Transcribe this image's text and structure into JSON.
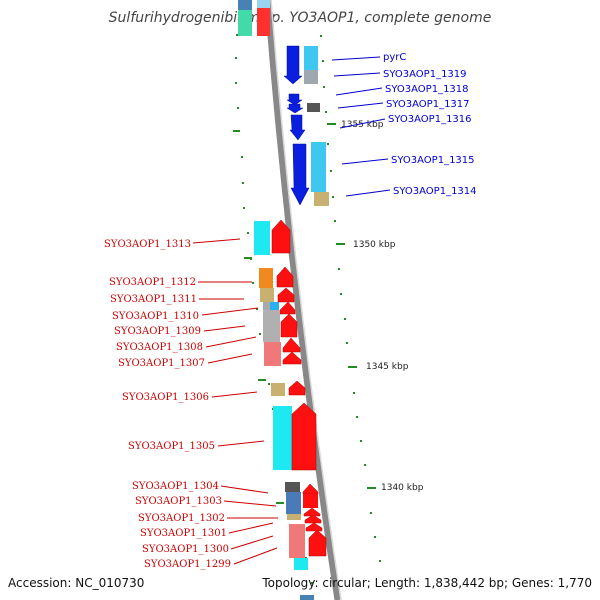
{
  "title": "Sulfurihydrogenibium sp. YO3AOP1, complete genome",
  "accession": "Accession: NC_010730",
  "topology": "Topology: circular; Length: 1,838,442 bp; Genes: 1,770",
  "colors": {
    "forward_label": "#0000cc",
    "reverse_label": "#cc0000",
    "backbone": "#888888",
    "tick": "#228b22"
  },
  "scale_ticks": [
    "1355 kbp",
    "1350 kbp",
    "1345 kbp",
    "1340 kbp"
  ],
  "forward_genes": [
    "pyrC",
    "SYO3AOP1_1319",
    "SYO3AOP1_1318",
    "SYO3AOP1_1317",
    "SYO3AOP1_1316",
    "SYO3AOP1_1315",
    "SYO3AOP1_1314"
  ],
  "reverse_genes": [
    "SYO3AOP1_1313",
    "SYO3AOP1_1312",
    "SYO3AOP1_1311",
    "SYO3AOP1_1310",
    "SYO3AOP1_1309",
    "SYO3AOP1_1308",
    "SYO3AOP1_1307",
    "SYO3AOP1_1306",
    "SYO3AOP1_1305",
    "SYO3AOP1_1304",
    "SYO3AOP1_1303",
    "SYO3AOP1_1302",
    "SYO3AOP1_1301",
    "SYO3AOP1_1300",
    "SYO3AOP1_1299"
  ]
}
